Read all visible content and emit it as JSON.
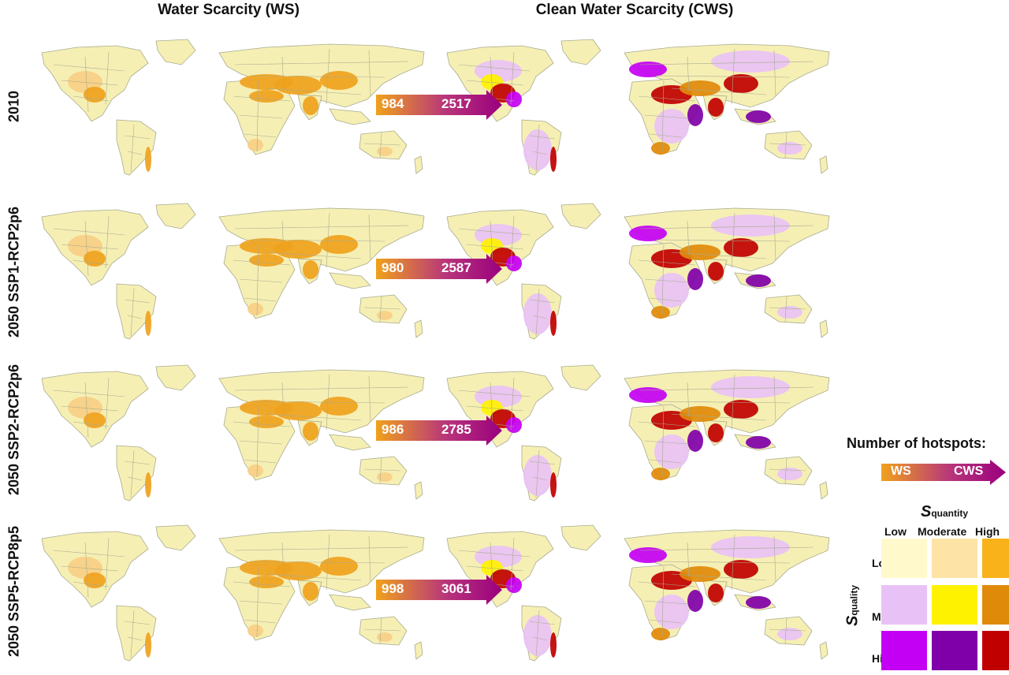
{
  "titles": {
    "ws": "Water Scarcity (WS)",
    "cws": "Clean Water Scarcity (CWS)"
  },
  "rows": [
    {
      "label": "2010",
      "ws_count": "984",
      "cws_count": "2517"
    },
    {
      "label": "2050 SSP1-RCP2p6",
      "ws_count": "980",
      "cws_count": "2587"
    },
    {
      "label": "2050 SSP2-RCP2p6",
      "ws_count": "986",
      "cws_count": "2785"
    },
    {
      "label": "2050 SSP5-RCP8p5",
      "ws_count": "998",
      "cws_count": "3061"
    }
  ],
  "legend": {
    "title": "Number of hotspots:",
    "arrow_left": "WS",
    "arrow_right": "CWS",
    "s_symbol": "S",
    "quantity_sub": "quantity",
    "quality_sub": "quality",
    "col_labels": [
      "Low",
      "Moderate",
      "High"
    ],
    "row_labels": [
      "Low",
      "Moderate",
      "High"
    ],
    "colors": [
      [
        "#fff9cc",
        "#fde3a6",
        "#f9b21a"
      ],
      [
        "#e8c2f6",
        "#fff200",
        "#e08a0a"
      ],
      [
        "#c400f4",
        "#7f00a8",
        "#c00000"
      ]
    ]
  },
  "palette": {
    "ocean": "#ffffff",
    "land_low": "#f6efb4",
    "border": "#a8ab8e",
    "ws_moderate": "#f7cf86",
    "ws_high": "#efa21d",
    "arrow_start": "#f0a21c",
    "arrow_end": "#9a007e"
  }
}
